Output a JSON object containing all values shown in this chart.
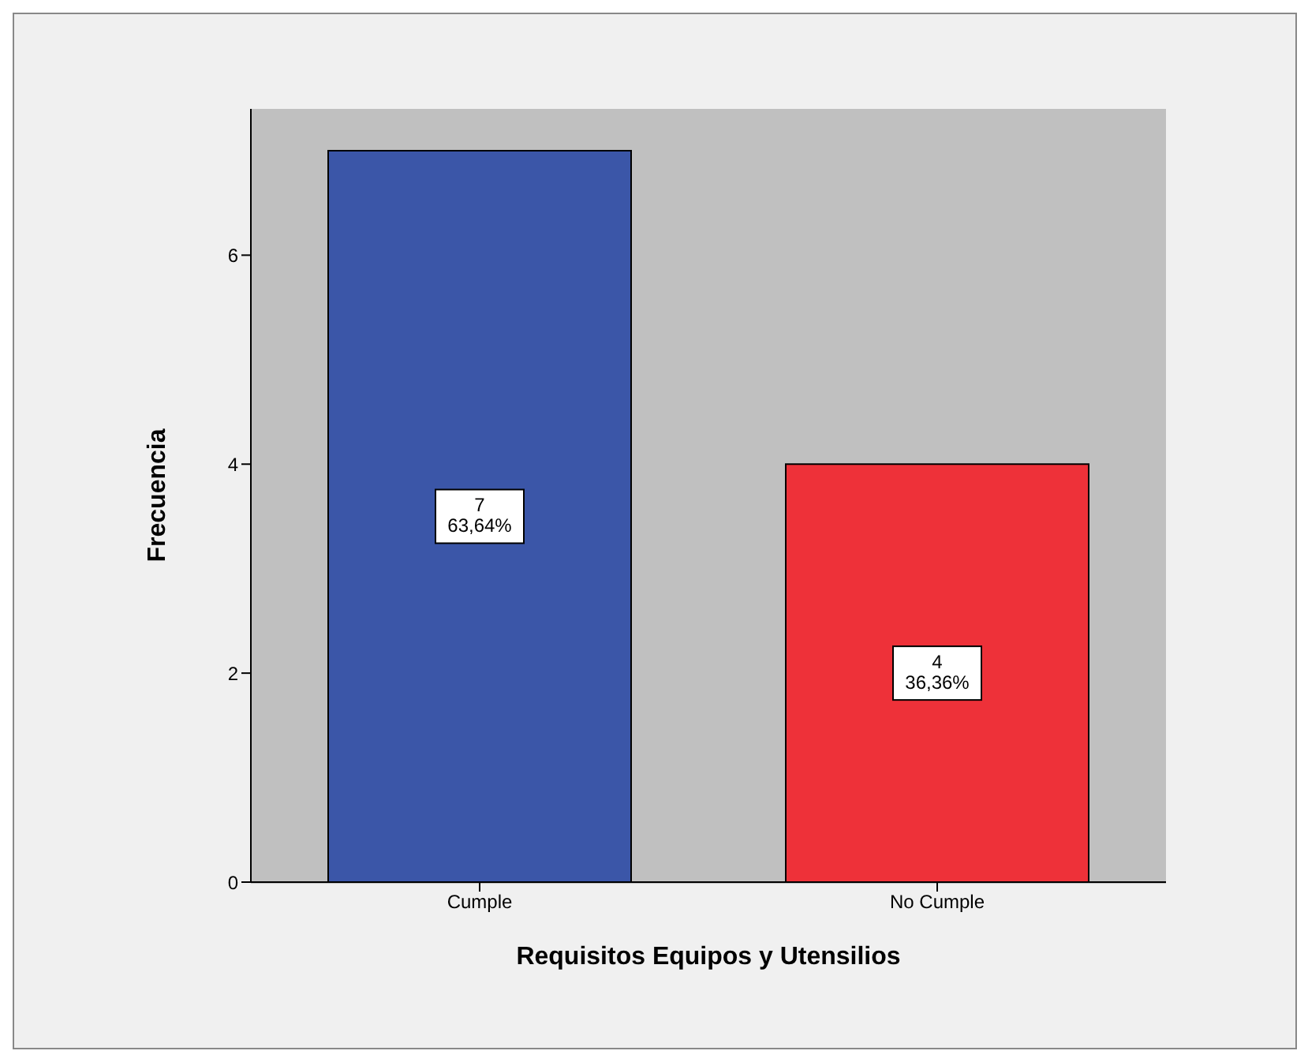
{
  "chart_data": {
    "type": "bar",
    "xlabel": "Requisitos Equipos y Utensilios",
    "ylabel": "Frecuencia",
    "categories": [
      "Cumple",
      "No Cumple"
    ],
    "values": [
      7,
      4
    ],
    "colors": [
      "#3b56a8",
      "#ee3139"
    ],
    "value_labels": [
      "7\n63,64%",
      "4\n36,36%"
    ],
    "ylim": [
      0,
      7.4
    ],
    "yticks": [
      0,
      2,
      4,
      6
    ],
    "grid": false,
    "legend": false
  }
}
